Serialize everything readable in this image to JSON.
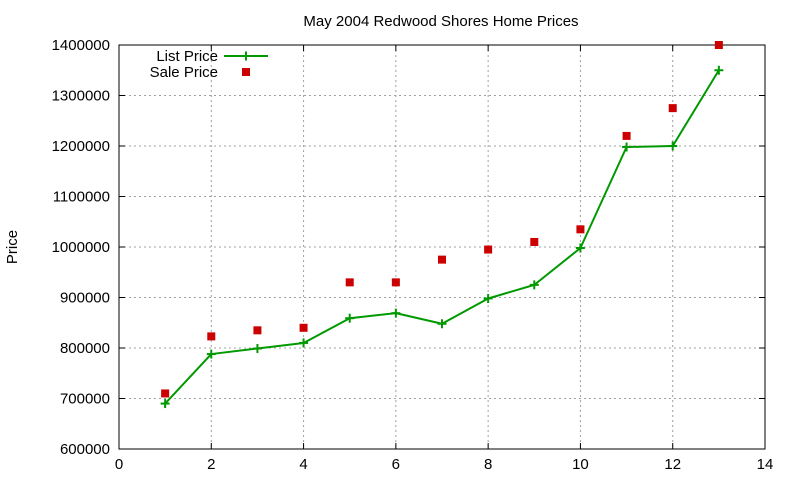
{
  "chart_data": {
    "type": "line",
    "title": "May 2004 Redwood Shores Home Prices",
    "xlabel": "",
    "ylabel": "Price",
    "xlim": [
      0,
      14
    ],
    "ylim": [
      600000,
      1400000
    ],
    "x_ticks": [
      0,
      2,
      4,
      6,
      8,
      10,
      12,
      14
    ],
    "y_ticks": [
      600000,
      700000,
      800000,
      900000,
      1000000,
      1100000,
      1200000,
      1300000,
      1400000
    ],
    "grid": true,
    "legend_position": "top-left",
    "series": [
      {
        "name": "List Price",
        "style": "line-with-plus-markers",
        "color": "#009900",
        "points": [
          [
            1,
            690000
          ],
          [
            2,
            788000
          ],
          [
            3,
            799000
          ],
          [
            4,
            810000
          ],
          [
            5,
            859000
          ],
          [
            6,
            869000
          ],
          [
            7,
            848000
          ],
          [
            8,
            898000
          ],
          [
            9,
            925000
          ],
          [
            10,
            998000
          ],
          [
            11,
            1198000
          ],
          [
            12,
            1200000
          ],
          [
            13,
            1350000
          ]
        ]
      },
      {
        "name": "Sale Price",
        "style": "square-markers",
        "color": "#cc0000",
        "points": [
          [
            1,
            710000
          ],
          [
            2,
            823000
          ],
          [
            3,
            835000
          ],
          [
            4,
            840000
          ],
          [
            5,
            930000
          ],
          [
            6,
            930000
          ],
          [
            7,
            975000
          ],
          [
            8,
            995000
          ],
          [
            9,
            1010000
          ],
          [
            10,
            1035000
          ],
          [
            11,
            1220000
          ],
          [
            12,
            1275000
          ],
          [
            13,
            1400000
          ]
        ]
      }
    ]
  }
}
